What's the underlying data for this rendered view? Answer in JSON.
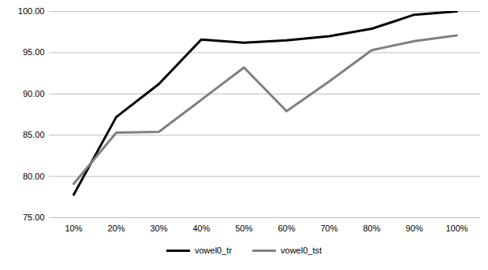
{
  "chart_data": {
    "type": "line",
    "categories": [
      "10%",
      "20%",
      "30%",
      "40%",
      "50%",
      "60%",
      "70%",
      "80%",
      "90%",
      "100%"
    ],
    "series": [
      {
        "name": "vowel0_tr",
        "color": "#000000",
        "values": [
          77.8,
          87.2,
          91.2,
          96.6,
          96.2,
          96.5,
          97.0,
          97.9,
          99.6,
          100.0
        ]
      },
      {
        "name": "vowel0_tst",
        "color": "#808080",
        "values": [
          79.1,
          85.3,
          85.4,
          89.3,
          93.2,
          87.9,
          91.5,
          95.3,
          96.4,
          97.1
        ]
      }
    ],
    "ylim": [
      75,
      100
    ],
    "yticks": [
      {
        "value": 75,
        "label": "75.00"
      },
      {
        "value": 80,
        "label": "80.00"
      },
      {
        "value": 85,
        "label": "85.00"
      },
      {
        "value": 90,
        "label": "90.00"
      },
      {
        "value": 95,
        "label": "95.00"
      },
      {
        "value": 100,
        "label": "100.00"
      }
    ],
    "grid": true,
    "legend": "bottom"
  }
}
